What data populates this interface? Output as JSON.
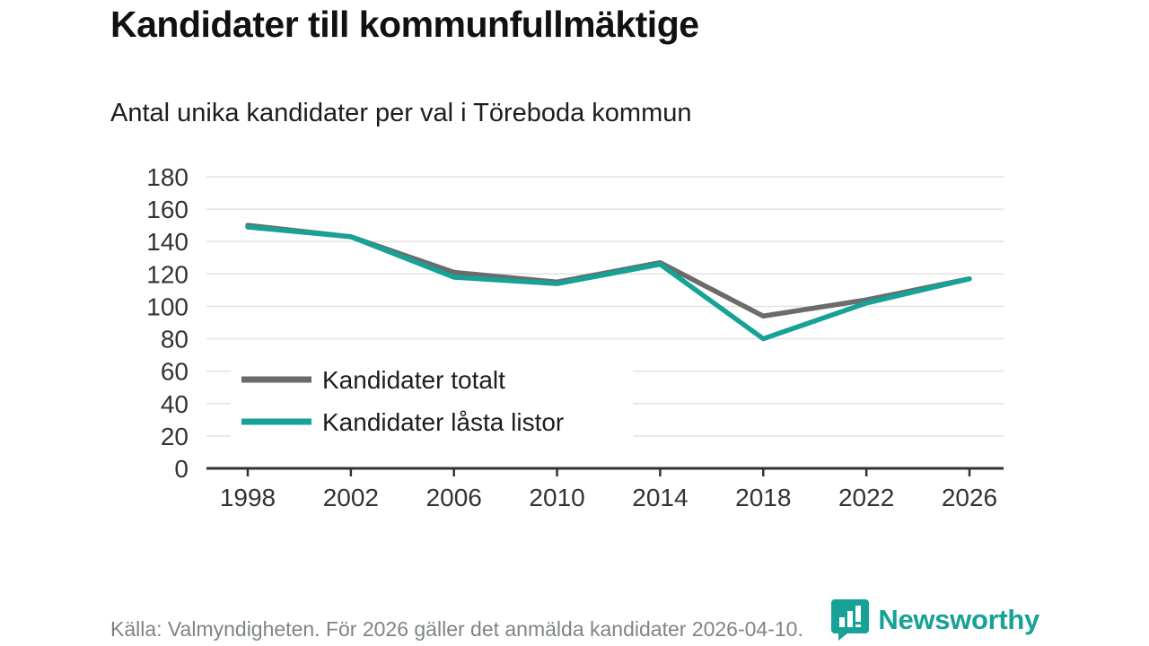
{
  "header": {
    "title": "Kandidater till kommunfullmäktige",
    "subtitle": "Antal unika kandidater per val i Töreboda kommun"
  },
  "footer": {
    "source": "Källa: Valmyndigheten. För 2026 gäller det anmälda kandidater 2026-04-10.",
    "brand": "Newsworthy"
  },
  "colors": {
    "accent_teal": "#16a296",
    "series_gray": "#6b6b6b",
    "axis": "#333333",
    "gridline": "#e2e2e2",
    "footer_text": "#7f8487"
  },
  "chart_data": {
    "type": "line",
    "title": "Kandidater till kommunfullmäktige",
    "subtitle": "Antal unika kandidater per val i Töreboda kommun",
    "categories": [
      "1998",
      "2002",
      "2006",
      "2010",
      "2014",
      "2018",
      "2022",
      "2026"
    ],
    "series": [
      {
        "name": "Kandidater totalt",
        "color": "#6b6b6b",
        "values": [
          150,
          143,
          121,
          115,
          127,
          94,
          104,
          117
        ]
      },
      {
        "name": "Kandidater låsta listor",
        "color": "#16a296",
        "values": [
          149,
          143,
          118,
          114,
          126,
          80,
          102,
          117
        ]
      }
    ],
    "xlabel": "",
    "ylabel": "",
    "ylim": [
      0,
      180
    ],
    "ytick_step": 20,
    "grid": "horizontal",
    "legend_position": "inside-bottom-left"
  }
}
